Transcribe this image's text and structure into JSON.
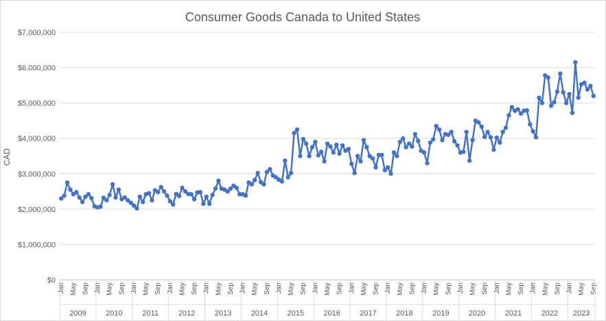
{
  "chart_data": {
    "type": "line",
    "title": "Consumer Goods Canada to United States",
    "ylabel": "CAD",
    "ylim": [
      0,
      7000000
    ],
    "y_ticks": [
      0,
      1000000,
      2000000,
      3000000,
      4000000,
      5000000,
      6000000,
      7000000
    ],
    "y_tick_labels": [
      "$0",
      "$1,000,000",
      "$2,000,000",
      "$3,000,000",
      "$4,000,000",
      "$5,000,000",
      "$6,000,000",
      "$7,000,000"
    ],
    "grid": true,
    "legend": "none",
    "series_color": "#4472c4",
    "month_labels": [
      "Jan",
      "May",
      "Sep"
    ],
    "years": [
      {
        "year": "2009",
        "months": 12
      },
      {
        "year": "2010",
        "months": 12
      },
      {
        "year": "2011",
        "months": 12
      },
      {
        "year": "2012",
        "months": 12
      },
      {
        "year": "2013",
        "months": 12
      },
      {
        "year": "2014",
        "months": 12
      },
      {
        "year": "2015",
        "months": 12
      },
      {
        "year": "2016",
        "months": 12
      },
      {
        "year": "2017",
        "months": 12
      },
      {
        "year": "2018",
        "months": 12
      },
      {
        "year": "2019",
        "months": 12
      },
      {
        "year": "2020",
        "months": 12
      },
      {
        "year": "2021",
        "months": 12
      },
      {
        "year": "2022",
        "months": 12
      },
      {
        "year": "2023",
        "months": 9
      }
    ],
    "values": [
      2300000,
      2380000,
      2750000,
      2550000,
      2420000,
      2480000,
      2330000,
      2200000,
      2350000,
      2420000,
      2310000,
      2080000,
      2050000,
      2070000,
      2320000,
      2250000,
      2400000,
      2700000,
      2330000,
      2550000,
      2280000,
      2330000,
      2250000,
      2180000,
      2100000,
      2020000,
      2350000,
      2200000,
      2420000,
      2450000,
      2250000,
      2530000,
      2480000,
      2620000,
      2500000,
      2380000,
      2220000,
      2130000,
      2430000,
      2370000,
      2600000,
      2500000,
      2430000,
      2420000,
      2280000,
      2470000,
      2480000,
      2150000,
      2350000,
      2150000,
      2400000,
      2580000,
      2800000,
      2580000,
      2550000,
      2500000,
      2580000,
      2660000,
      2600000,
      2420000,
      2420000,
      2380000,
      2750000,
      2700000,
      2820000,
      3020000,
      2760000,
      2700000,
      3050000,
      3130000,
      2950000,
      2900000,
      2830000,
      2780000,
      3370000,
      2900000,
      3020000,
      4150000,
      4250000,
      3500000,
      3980000,
      3850000,
      3500000,
      3750000,
      3900000,
      3520000,
      3620000,
      3350000,
      3850000,
      3770000,
      3600000,
      3820000,
      3570000,
      3800000,
      3650000,
      3700000,
      3280000,
      3020000,
      3500000,
      3350000,
      3950000,
      3750000,
      3500000,
      3430000,
      3180000,
      3530000,
      3530000,
      3100000,
      3180000,
      3000000,
      3600000,
      3500000,
      3900000,
      4000000,
      3750000,
      3850000,
      3770000,
      4120000,
      3930000,
      3650000,
      3600000,
      3300000,
      3880000,
      3970000,
      4350000,
      4250000,
      3950000,
      4120000,
      4100000,
      4180000,
      3920000,
      3800000,
      3600000,
      3620000,
      4180000,
      3370000,
      3950000,
      4500000,
      4450000,
      4330000,
      4040000,
      4180000,
      4030000,
      3680000,
      4020000,
      3880000,
      4180000,
      4300000,
      4650000,
      4880000,
      4780000,
      4820000,
      4700000,
      4780000,
      4790000,
      4400000,
      4200000,
      4030000,
      5150000,
      5000000,
      5780000,
      5720000,
      4920000,
      5020000,
      5320000,
      5830000,
      5300000,
      5000000,
      5250000,
      4720000,
      6150000,
      5150000,
      5530000,
      5570000,
      5380000,
      5480000,
      5200000
    ]
  }
}
